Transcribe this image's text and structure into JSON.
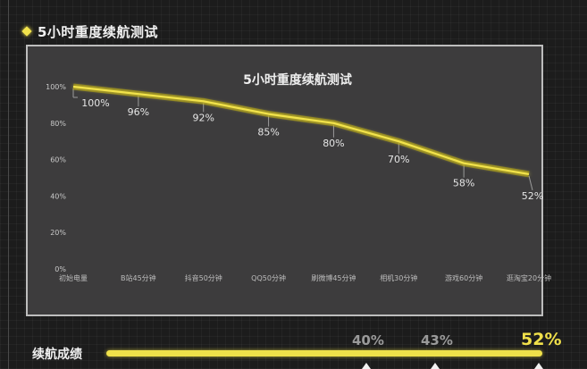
{
  "header": {
    "title": "5小时重度续航测试",
    "icon": "diamond-bullet-icon",
    "accent_color": "#f2e34c"
  },
  "chart_data": {
    "type": "line",
    "title": "5小时重度续航测试",
    "xlabel": "",
    "ylabel": "",
    "categories": [
      "初始电量",
      "B站45分钟",
      "抖音50分钟",
      "QQ50分钟",
      "刷微博45分钟",
      "相机30分钟",
      "游戏60分钟",
      "逛淘宝20分钟"
    ],
    "series": [
      {
        "name": "电量",
        "values": [
          100,
          96,
          92,
          85,
          80,
          70,
          58,
          52
        ],
        "color": "#f2e34c"
      }
    ],
    "data_labels": [
      "100%",
      "96%",
      "92%",
      "85%",
      "80%",
      "70%",
      "58%",
      "52%"
    ],
    "yticks": [
      "0%",
      "20%",
      "40%",
      "60%",
      "80%",
      "100%"
    ],
    "ylim": [
      0,
      100
    ],
    "grid": false,
    "legend": "none"
  },
  "summary": {
    "label": "续航成绩",
    "scores": [
      {
        "value": "40%",
        "highlight": false
      },
      {
        "value": "43%",
        "highlight": false
      },
      {
        "value": "52%",
        "highlight": true
      }
    ],
    "bar_color": "#efe14a"
  }
}
